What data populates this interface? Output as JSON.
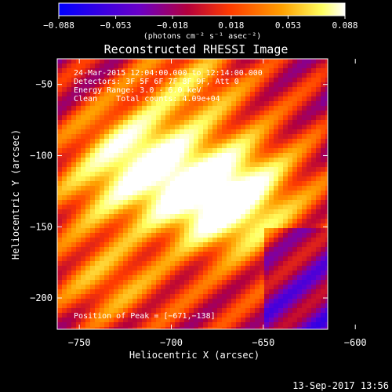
{
  "chart_data": {
    "type": "heatmap",
    "title": "Reconstructed RHESSI Image",
    "xlabel": "Heliocentric X (arcsec)",
    "ylabel": "Heliocentric Y (arcsec)",
    "xlim": [
      -762,
      -615
    ],
    "ylim": [
      -222,
      -32
    ],
    "x_ticks": [
      -750,
      -700,
      -650,
      -600
    ],
    "y_ticks": [
      -50,
      -100,
      -150,
      -200
    ],
    "x_tick_labels": [
      "−750",
      "−700",
      "−650",
      "−600"
    ],
    "y_tick_labels": [
      "−50",
      "−100",
      "−150",
      "−200"
    ],
    "colorbar": {
      "range": [
        -0.088,
        0.088
      ],
      "ticks": [
        -0.088,
        -0.053,
        -0.018,
        0.018,
        0.053,
        0.088
      ],
      "tick_labels": [
        "−0.088",
        "−0.053",
        "−0.018",
        "0.018",
        "0.053",
        "0.088"
      ],
      "label": "(photons cm⁻² s⁻¹ asec⁻²)"
    },
    "colormap": [
      "#0000ff",
      "#6a00c8",
      "#b4003c",
      "#ff3c00",
      "#ffa000",
      "#ffff60",
      "#ffffff"
    ],
    "sources": [
      {
        "x": -671,
        "y": -138,
        "peak": 0.088
      },
      {
        "x": -700,
        "y": -118,
        "peak": 0.06
      },
      {
        "x": -722,
        "y": -93,
        "peak": 0.065
      },
      {
        "x": -690,
        "y": -48,
        "peak": 0.05
      },
      {
        "x": -736,
        "y": -190,
        "peak": 0.04
      },
      {
        "x": -660,
        "y": -112,
        "peak": 0.045
      },
      {
        "x": -742,
        "y": -128,
        "peak": 0.035
      }
    ],
    "annotations": [
      "24-Mar-2015 12:04:00.000 to 12:14:00.000",
      "Detectors: 3F 5F 6F 7F 8F 9F, Att 0",
      "Energy Range: 3.0 - 6.0 keV",
      "Clean    Total counts: 4.09e+04"
    ],
    "peak_label": "Position of Peak = [−671,−138]",
    "timestamp": "13-Sep-2017 13:56"
  }
}
